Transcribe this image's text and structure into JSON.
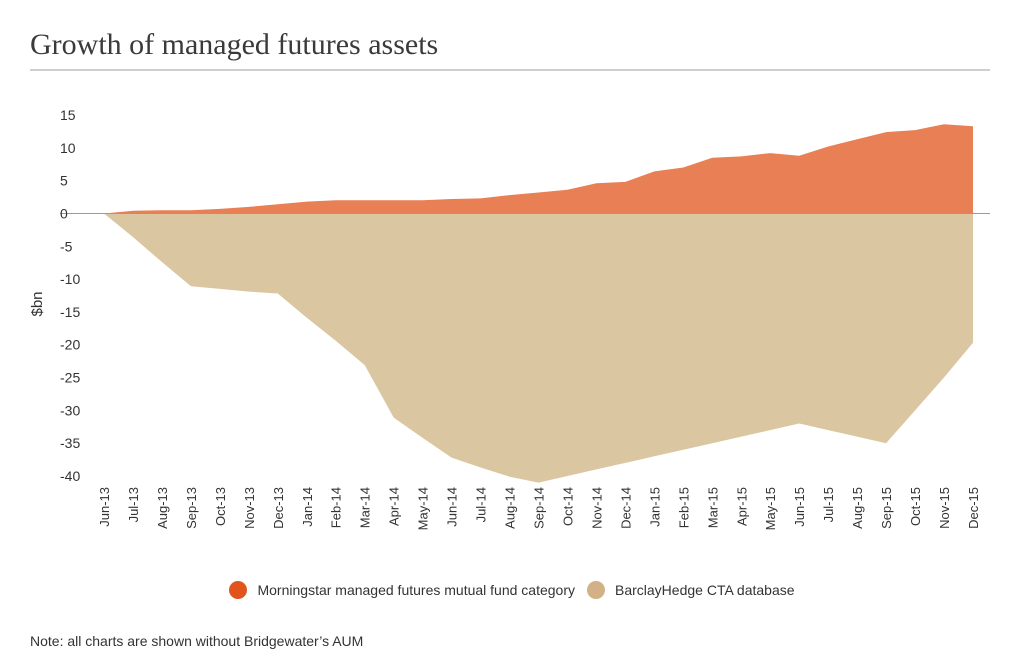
{
  "title": "Growth of managed futures assets",
  "note": "Note: all charts are shown without Bridgewater’s AUM",
  "chart_data": {
    "type": "area",
    "ylabel": "$bn",
    "xlabel": "",
    "ylim": [
      -40,
      15
    ],
    "yticks": [
      15,
      10,
      5,
      0,
      -5,
      -10,
      -15,
      -20,
      -25,
      -30,
      -35,
      -40
    ],
    "grid": false,
    "legend_position": "bottom",
    "categories": [
      "Jun-13",
      "Jul-13",
      "Aug-13",
      "Sep-13",
      "Oct-13",
      "Nov-13",
      "Dec-13",
      "Jan-14",
      "Feb-14",
      "Mar-14",
      "Apr-14",
      "May-14",
      "Jun-14",
      "Jul-14",
      "Aug-14",
      "Sep-14",
      "Oct-14",
      "Nov-14",
      "Dec-14",
      "Jan-15",
      "Feb-15",
      "Mar-15",
      "Apr-15",
      "May-15",
      "Jun-15",
      "Jul-15",
      "Aug-15",
      "Sep-15",
      "Oct-15",
      "Nov-15",
      "Dec-15"
    ],
    "series": [
      {
        "name": "Morningstar managed futures mutual fund category",
        "color": "#e97f54",
        "legend_color": "#e2541e",
        "values": [
          0,
          0.4,
          0.5,
          0.5,
          0.7,
          1.0,
          1.4,
          1.8,
          2.0,
          2.0,
          2.0,
          2.0,
          2.2,
          2.3,
          2.8,
          3.2,
          3.6,
          4.6,
          4.8,
          6.4,
          7.0,
          8.5,
          8.7,
          9.2,
          8.8,
          10.2,
          11.3,
          12.4,
          12.7,
          13.6,
          13.3
        ]
      },
      {
        "name": "BarclayHedge CTA database",
        "color": "#dac7a1",
        "legend_color": "#d1b185",
        "values": [
          0,
          -3.6,
          -7.4,
          -11.1,
          -11.5,
          -11.9,
          -12.2,
          -15.9,
          -19.4,
          -23.1,
          -31.1,
          -34.2,
          -37.2,
          -38.7,
          -40.1,
          -41.0,
          -40.0,
          -39.0,
          -38.0,
          -37.0,
          -36.0,
          -35.0,
          -34.0,
          -33.0,
          -32.0,
          -33.0,
          -34.0,
          -35.0,
          -30.0,
          -25.0,
          -19.7
        ]
      }
    ]
  }
}
